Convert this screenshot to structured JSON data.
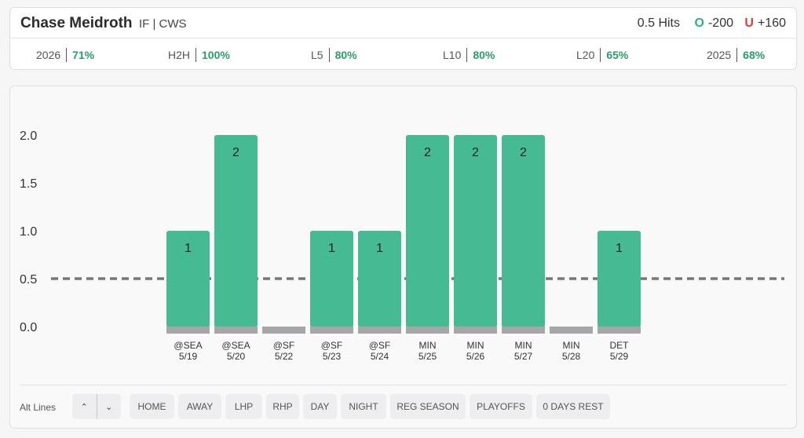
{
  "header": {
    "player_name": "Chase Meidroth",
    "player_meta": "IF | CWS",
    "prop_line": "0.5 Hits",
    "over": {
      "letter": "O",
      "odds": "-200"
    },
    "under": {
      "letter": "U",
      "odds": "+160"
    }
  },
  "stats": [
    {
      "label": "2026",
      "value": "71%"
    },
    {
      "label": "H2H",
      "value": "100%"
    },
    {
      "label": "L5",
      "value": "80%"
    },
    {
      "label": "L10",
      "value": "80%"
    },
    {
      "label": "L20",
      "value": "65%"
    },
    {
      "label": "2025",
      "value": "68%"
    }
  ],
  "chart_data": {
    "type": "bar",
    "categories": [
      "@SEA 5/19",
      "@SEA 5/20",
      "@SF 5/22",
      "@SF 5/23",
      "@SF 5/24",
      "MIN 5/25",
      "MIN 5/26",
      "MIN 5/27",
      "MIN 5/28",
      "DET 5/29"
    ],
    "opponents": [
      "@SEA",
      "@SEA",
      "@SF",
      "@SF",
      "@SF",
      "MIN",
      "MIN",
      "MIN",
      "MIN",
      "DET"
    ],
    "dates": [
      "5/19",
      "5/20",
      "5/22",
      "5/23",
      "5/24",
      "5/25",
      "5/26",
      "5/27",
      "5/28",
      "5/29"
    ],
    "values": [
      1,
      2,
      0,
      1,
      1,
      2,
      2,
      2,
      0,
      1
    ],
    "line": 0.5,
    "yticks": [
      "0.0",
      "0.5",
      "1.0",
      "1.5",
      "2.0"
    ],
    "ylim": [
      0,
      2
    ],
    "colors": {
      "hit": "#46ba92",
      "zero": "#a6a6a8",
      "line": "#777777"
    }
  },
  "filters": {
    "alt_lines_label": "Alt Lines",
    "up_icon": "chevron-up-icon",
    "down_icon": "chevron-down-icon",
    "chips": [
      "HOME",
      "AWAY",
      "LHP",
      "RHP",
      "DAY",
      "NIGHT",
      "REG SEASON",
      "PLAYOFFS",
      "0 DAYS REST"
    ]
  }
}
